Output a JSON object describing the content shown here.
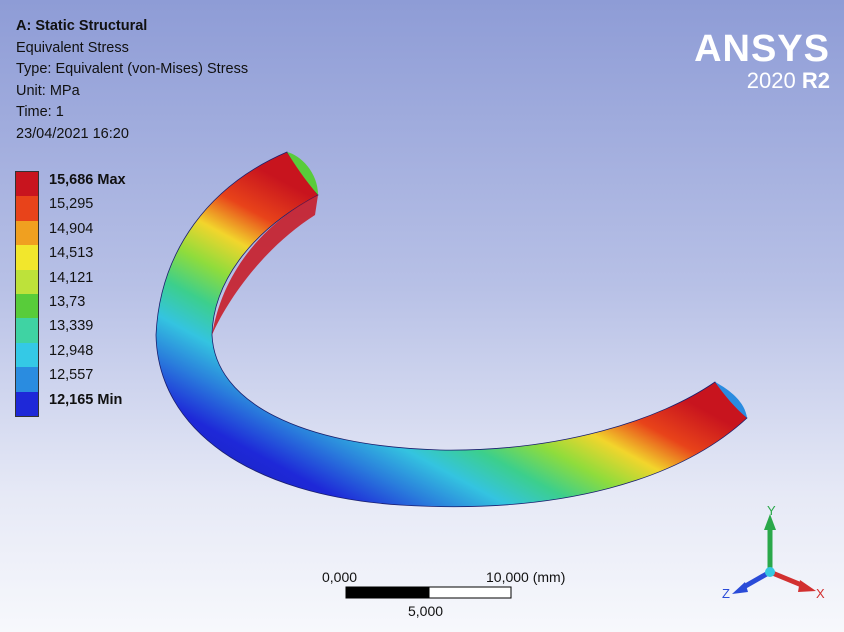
{
  "header": {
    "title": "A: Static Structural",
    "result": "Equivalent Stress",
    "type": "Type: Equivalent (von-Mises) Stress",
    "unit": "Unit: MPa",
    "time": "Time: 1",
    "timestamp": "23/04/2021 16:20"
  },
  "logo": {
    "brand": "ANSYS",
    "version": "2020",
    "release": "R2"
  },
  "legend": {
    "labels": [
      "15,686 Max",
      "15,295",
      "14,904",
      "14,513",
      "14,121",
      "13,73",
      "13,339",
      "12,948",
      "12,557",
      "12,165 Min"
    ],
    "colors": [
      "#c8141e",
      "#e8431a",
      "#f0a020",
      "#f2e72c",
      "#bde23a",
      "#58cc3a",
      "#3fd3a3",
      "#34c9e6",
      "#2a8ce0",
      "#1e28d8"
    ]
  },
  "scalebar": {
    "left": "0,000",
    "right": "10,000 (mm)",
    "mid": "5,000"
  },
  "triad": {
    "x": "X",
    "y": "Y",
    "z": "Z"
  }
}
